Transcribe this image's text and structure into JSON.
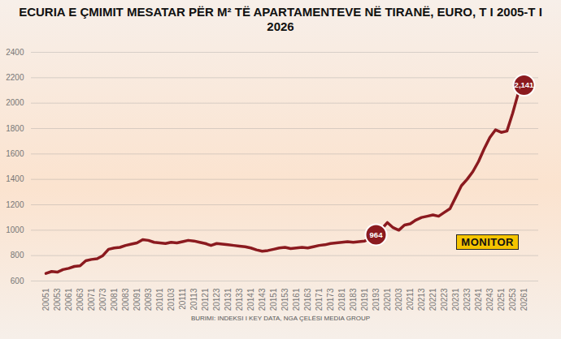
{
  "chart_data": {
    "type": "line",
    "title": "ECURIA E ÇMIMIT MESATAR PËR M² TË APARTAMENTEVE NË TIRANË, EURO, T I 2005-T I 2026",
    "caption": "BURIMI: INDEKSI I KEY DATA, NGA ÇELËSI MEDIA GROUP",
    "annotations": [
      "MONITOR"
    ],
    "categories": [
      "20051",
      null,
      "20053",
      null,
      "20061",
      null,
      "20063",
      null,
      "20071",
      null,
      "20073",
      null,
      "20081",
      null,
      "20083",
      null,
      "20091",
      null,
      "20093",
      null,
      "20101",
      null,
      "20103",
      null,
      "20111",
      null,
      "20113",
      null,
      "20121",
      null,
      "20123",
      null,
      "20131",
      null,
      "20133",
      null,
      "20141",
      null,
      "20143",
      null,
      "20151",
      null,
      "20153",
      null,
      "20161",
      null,
      "20163",
      null,
      "20171",
      null,
      "20173",
      null,
      "20181",
      null,
      "20183",
      null,
      "20191",
      null,
      "20193",
      null,
      "20201",
      null,
      "20203",
      null,
      "20211",
      null,
      "20213",
      null,
      "20221",
      null,
      "20223",
      null,
      "20231",
      null,
      "20233",
      null,
      "20241",
      null,
      "20243",
      null,
      "20251",
      null,
      "20253",
      null,
      "20261"
    ],
    "values": [
      660,
      675,
      670,
      690,
      700,
      715,
      720,
      760,
      770,
      775,
      800,
      850,
      860,
      865,
      880,
      890,
      900,
      925,
      920,
      905,
      900,
      895,
      905,
      900,
      910,
      920,
      915,
      905,
      895,
      880,
      895,
      890,
      885,
      880,
      875,
      870,
      860,
      845,
      835,
      840,
      850,
      860,
      865,
      855,
      860,
      865,
      860,
      870,
      880,
      885,
      895,
      900,
      905,
      910,
      905,
      910,
      915,
      935,
      964,
      1010,
      1060,
      1020,
      1000,
      1040,
      1050,
      1080,
      1100,
      1110,
      1120,
      1110,
      1140,
      1170,
      1260,
      1350,
      1400,
      1460,
      1540,
      1640,
      1730,
      1790,
      1770,
      1780,
      1920,
      2080,
      2141
    ],
    "value_labels": [
      null,
      null,
      null,
      null,
      null,
      null,
      null,
      null,
      null,
      null,
      null,
      null,
      null,
      null,
      null,
      null,
      null,
      null,
      null,
      null,
      null,
      null,
      null,
      null,
      null,
      null,
      null,
      null,
      null,
      null,
      null,
      null,
      null,
      null,
      null,
      null,
      null,
      null,
      null,
      null,
      null,
      null,
      null,
      null,
      null,
      null,
      null,
      null,
      null,
      null,
      null,
      null,
      null,
      null,
      null,
      null,
      null,
      null,
      "964",
      null,
      null,
      null,
      null,
      null,
      null,
      null,
      null,
      null,
      null,
      null,
      null,
      null,
      null,
      null,
      null,
      null,
      null,
      null,
      null,
      null,
      null,
      null,
      null,
      null,
      "2,141"
    ],
    "data_labels": true,
    "color": "#8b1a1f",
    "ylim": [
      600,
      2400
    ],
    "yticks": [
      600,
      800,
      1000,
      1200,
      1400,
      1600,
      1800,
      2000,
      2200,
      2400
    ],
    "grid": true
  }
}
